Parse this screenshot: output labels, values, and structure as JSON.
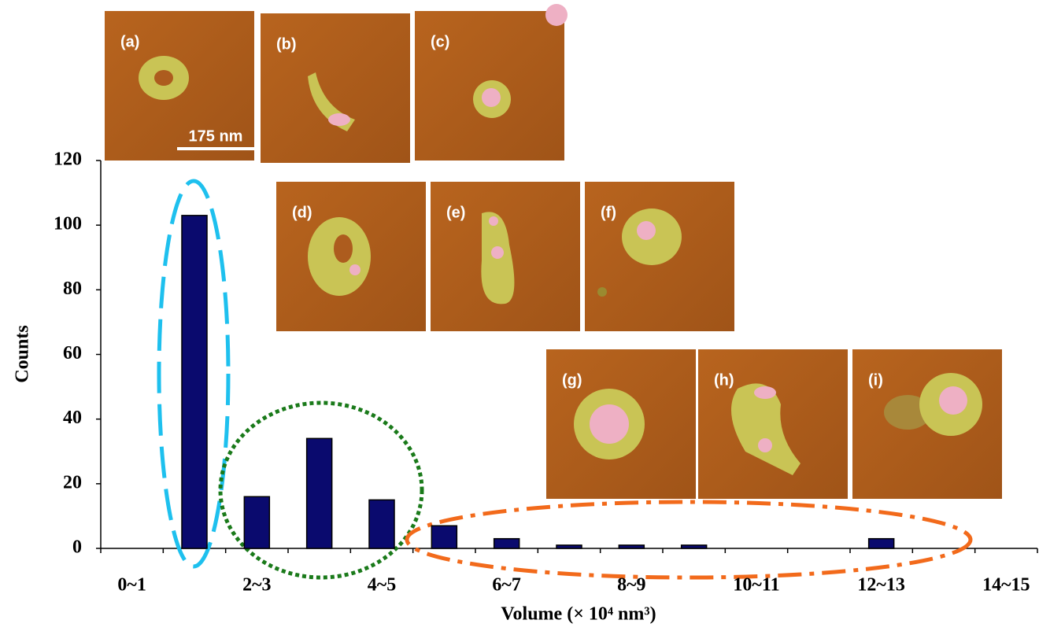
{
  "chart_data": {
    "type": "bar",
    "xlabel": "Volume (× 10⁴ nm³)",
    "ylabel": "Counts",
    "categories": [
      "0~1",
      null,
      "2~3",
      null,
      "4~5",
      null,
      "6~7",
      null,
      "8~9",
      null,
      "10~11",
      null,
      "12~13",
      null,
      "14~15"
    ],
    "values": [
      0,
      103,
      16,
      34,
      15,
      7,
      3,
      1,
      1,
      1,
      0,
      0,
      3,
      0,
      0
    ],
    "color": "#0a0a6e",
    "ylim": [
      0,
      120
    ],
    "yticks": [
      0,
      20,
      40,
      60,
      80,
      100,
      120
    ],
    "insets": [
      "(a)",
      "(b)",
      "(c)",
      "(d)",
      "(e)",
      "(f)",
      "(g)",
      "(h)",
      "(i)"
    ],
    "scale_bar": "175 nm"
  }
}
